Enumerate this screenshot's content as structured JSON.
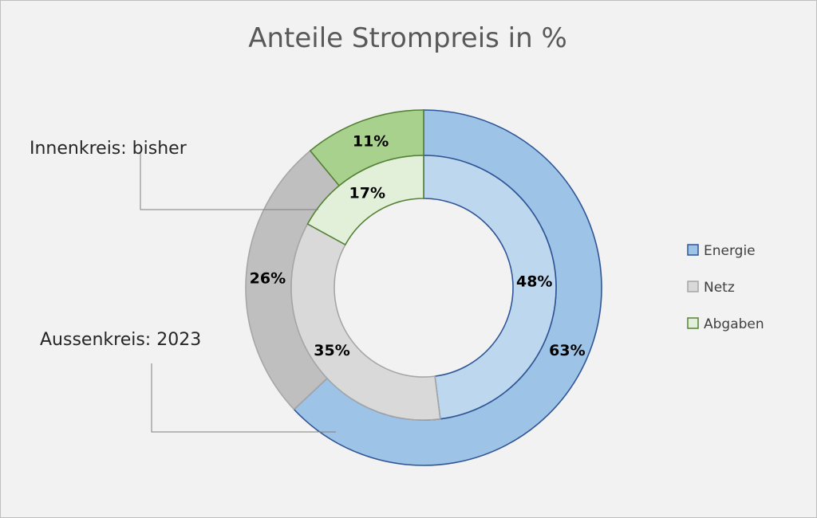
{
  "chart_data": {
    "type": "pie",
    "subtype": "double-donut",
    "title": "Anteile Strompreis in %",
    "categories": [
      "Energie",
      "Netz",
      "Abgaben"
    ],
    "series": [
      {
        "ring": "inner",
        "values": [
          48,
          35,
          17
        ],
        "labels": [
          "48%",
          "35%",
          "17%"
        ]
      },
      {
        "ring": "outer",
        "values": [
          63,
          26,
          11
        ],
        "labels": [
          "63%",
          "26%",
          "11%"
        ]
      }
    ],
    "callouts": {
      "inner": "Innenkreis: bisher",
      "outer": "Aussenkreis: 2023"
    },
    "legend": {
      "position": "right",
      "entries": [
        "Energie",
        "Netz",
        "Abgaben"
      ]
    },
    "colors": {
      "inner": [
        "#bdd7ee",
        "#d9d9d9",
        "#e2f0d9"
      ],
      "outer": [
        "#9dc3e6",
        "#bfbfbf",
        "#a9d18e"
      ],
      "stroke": [
        "#2f5597",
        "#a6a6a6",
        "#548235"
      ],
      "legend_fill": [
        "#9dc3e6",
        "#d9d9d9",
        "#e2f0d9"
      ]
    }
  }
}
